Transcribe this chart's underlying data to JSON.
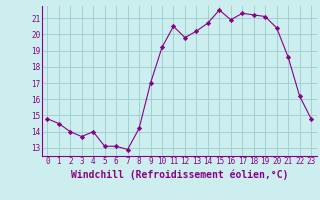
{
  "x": [
    0,
    1,
    2,
    3,
    4,
    5,
    6,
    7,
    8,
    9,
    10,
    11,
    12,
    13,
    14,
    15,
    16,
    17,
    18,
    19,
    20,
    21,
    22,
    23
  ],
  "y": [
    14.8,
    14.5,
    14.0,
    13.7,
    14.0,
    13.1,
    13.1,
    12.9,
    14.2,
    17.0,
    19.2,
    20.5,
    19.8,
    20.2,
    20.7,
    21.5,
    20.9,
    21.3,
    21.2,
    21.1,
    20.4,
    18.6,
    16.2,
    14.8
  ],
  "line_color": "#880088",
  "marker": "D",
  "marker_size": 2.2,
  "background_color": "#cceeee",
  "grid_color": "#99cccc",
  "xlabel": "Windchill (Refroidissement éolien,°C)",
  "xlim": [
    -0.5,
    23.5
  ],
  "ylim": [
    12.5,
    21.75
  ],
  "yticks": [
    13,
    14,
    15,
    16,
    17,
    18,
    19,
    20,
    21
  ],
  "xticks": [
    0,
    1,
    2,
    3,
    4,
    5,
    6,
    7,
    8,
    9,
    10,
    11,
    12,
    13,
    14,
    15,
    16,
    17,
    18,
    19,
    20,
    21,
    22,
    23
  ],
  "tick_color": "#880088",
  "label_color": "#880088",
  "tick_fontsize": 5.5,
  "xlabel_fontsize": 7.0
}
